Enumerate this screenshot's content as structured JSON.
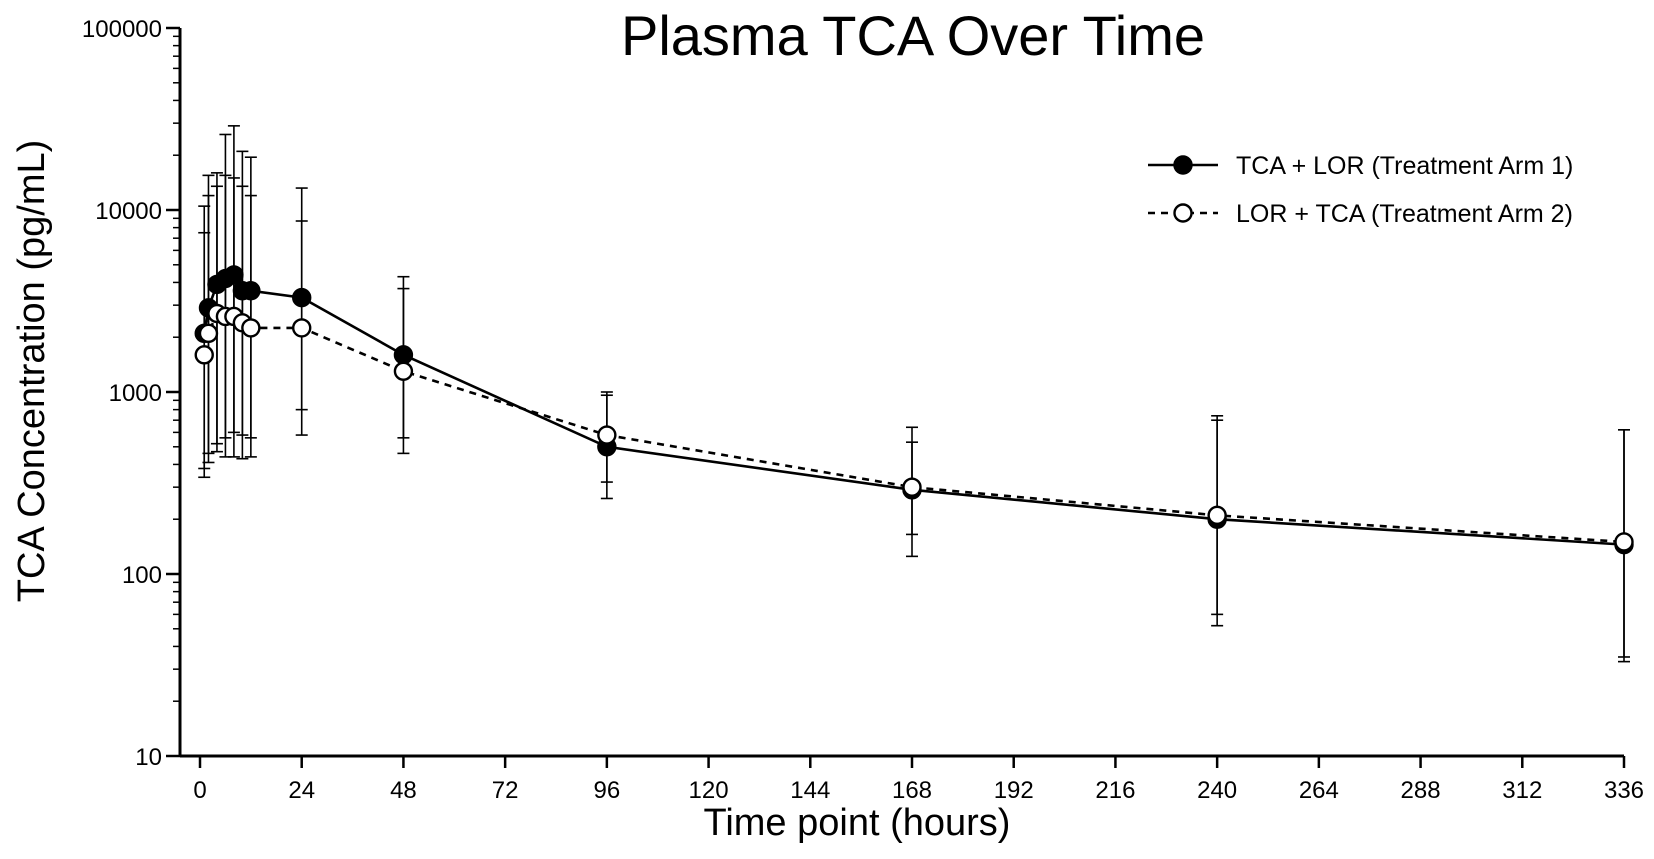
{
  "chart_data": {
    "type": "line",
    "title": "Plasma TCA Over Time",
    "xlabel": "Time point (hours)",
    "ylabel": "TCA Concentration (pg/mL)",
    "xlim": [
      0,
      336
    ],
    "ylim": [
      10,
      100000
    ],
    "yscale": "log",
    "xticks": [
      0,
      24,
      48,
      72,
      96,
      120,
      144,
      168,
      192,
      216,
      240,
      264,
      288,
      312,
      336
    ],
    "yticks": [
      10,
      100,
      1000,
      10000,
      100000
    ],
    "grid": false,
    "legend_position": "top-right",
    "series": [
      {
        "name": "TCA + LOR (Treatment Arm 1)",
        "line_style": "solid",
        "marker": "filled-circle",
        "color": "#000000",
        "x": [
          1,
          2,
          4,
          6,
          8,
          10,
          12,
          24,
          48,
          96,
          168,
          240,
          336
        ],
        "y": [
          2100,
          2900,
          3900,
          4200,
          4400,
          3600,
          3600,
          3300,
          1600,
          500,
          290,
          200,
          145
        ],
        "error_low": [
          380,
          460,
          520,
          560,
          600,
          580,
          560,
          800,
          560,
          320,
          165,
          60,
          33
        ],
        "error_high": [
          10500,
          15500,
          16000,
          26000,
          29000,
          21000,
          19500,
          13200,
          4300,
          960,
          640,
          740,
          620
        ]
      },
      {
        "name": "LOR + TCA (Treatment Arm 2)",
        "line_style": "dashed",
        "marker": "open-circle",
        "color": "#000000",
        "x": [
          1,
          2,
          4,
          6,
          8,
          10,
          12,
          24,
          48,
          96,
          168,
          240,
          336
        ],
        "y": [
          1600,
          2100,
          2700,
          2600,
          2600,
          2400,
          2250,
          2250,
          1300,
          580,
          300,
          210,
          150
        ],
        "error_low": [
          340,
          410,
          470,
          440,
          440,
          430,
          440,
          580,
          460,
          260,
          125,
          52,
          35
        ],
        "error_high": [
          7500,
          12000,
          13500,
          15500,
          15000,
          13500,
          12000,
          8700,
          3700,
          1000,
          530,
          700,
          620
        ]
      }
    ]
  }
}
